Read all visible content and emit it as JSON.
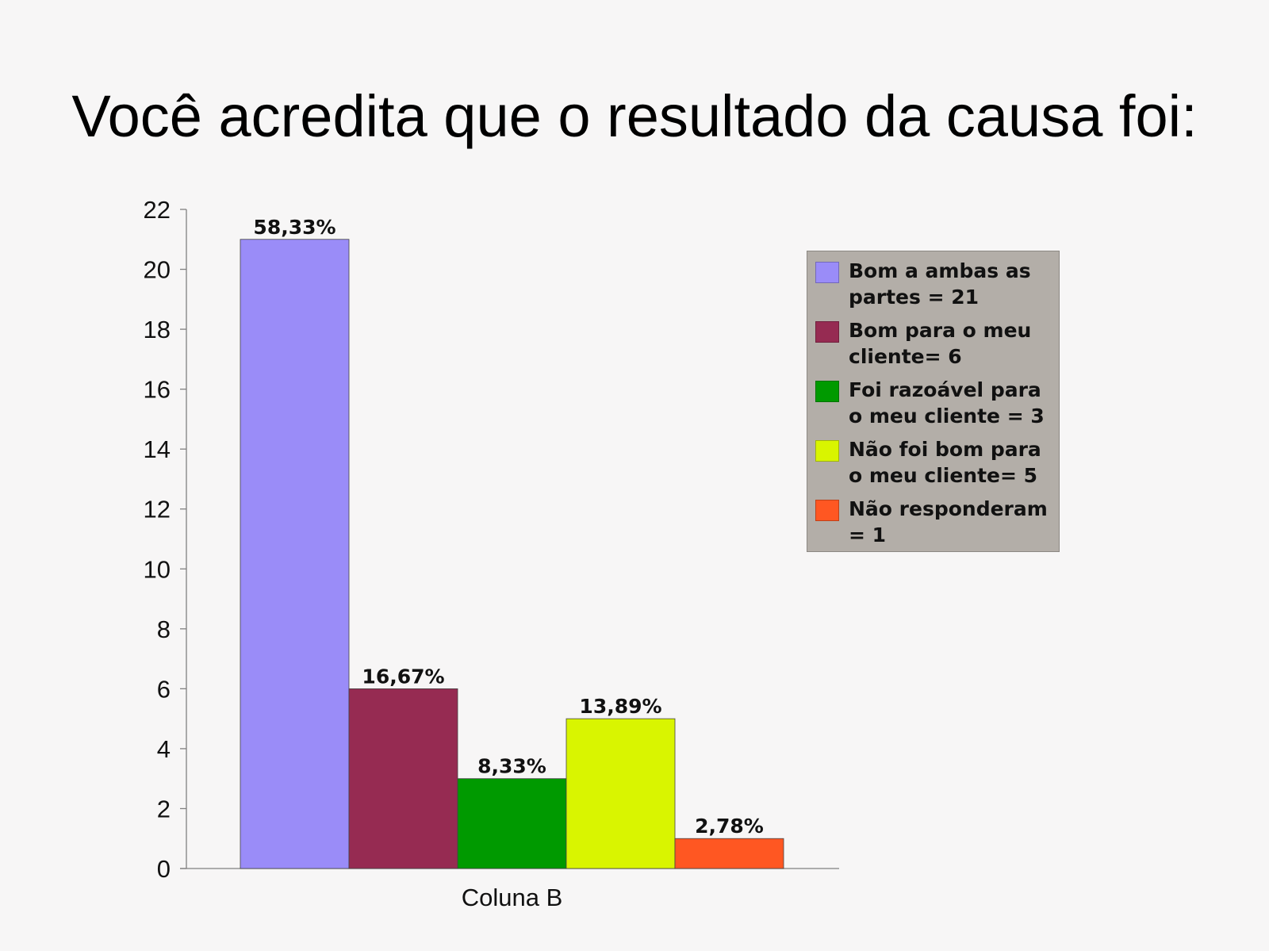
{
  "title": "Você acredita que o resultado da causa foi:",
  "chart_data": {
    "type": "bar",
    "categories": [
      "Coluna B"
    ],
    "xlabel": "Coluna B",
    "ylabel": "",
    "ylim": [
      0,
      22
    ],
    "yticks": [
      0,
      2,
      4,
      6,
      8,
      10,
      12,
      14,
      16,
      18,
      20,
      22
    ],
    "grid": false,
    "legend_position": "right",
    "series": [
      {
        "name": "Bom a ambas as partes = 21",
        "values": [
          21
        ],
        "label": "58,33%",
        "color": "#9a8cf8"
      },
      {
        "name": "Bom para o meu cliente= 6",
        "values": [
          6
        ],
        "label": "16,67%",
        "color": "#962b52"
      },
      {
        "name": "Foi razoável para o meu cliente = 3",
        "values": [
          3
        ],
        "label": "8,33%",
        "color": "#009a00"
      },
      {
        "name": "Não foi bom para o meu cliente= 5",
        "values": [
          5
        ],
        "label": "13,89%",
        "color": "#d9f500"
      },
      {
        "name": "Não responderam = 1",
        "values": [
          1
        ],
        "label": "2,78%",
        "color": "#ff5722"
      }
    ]
  }
}
